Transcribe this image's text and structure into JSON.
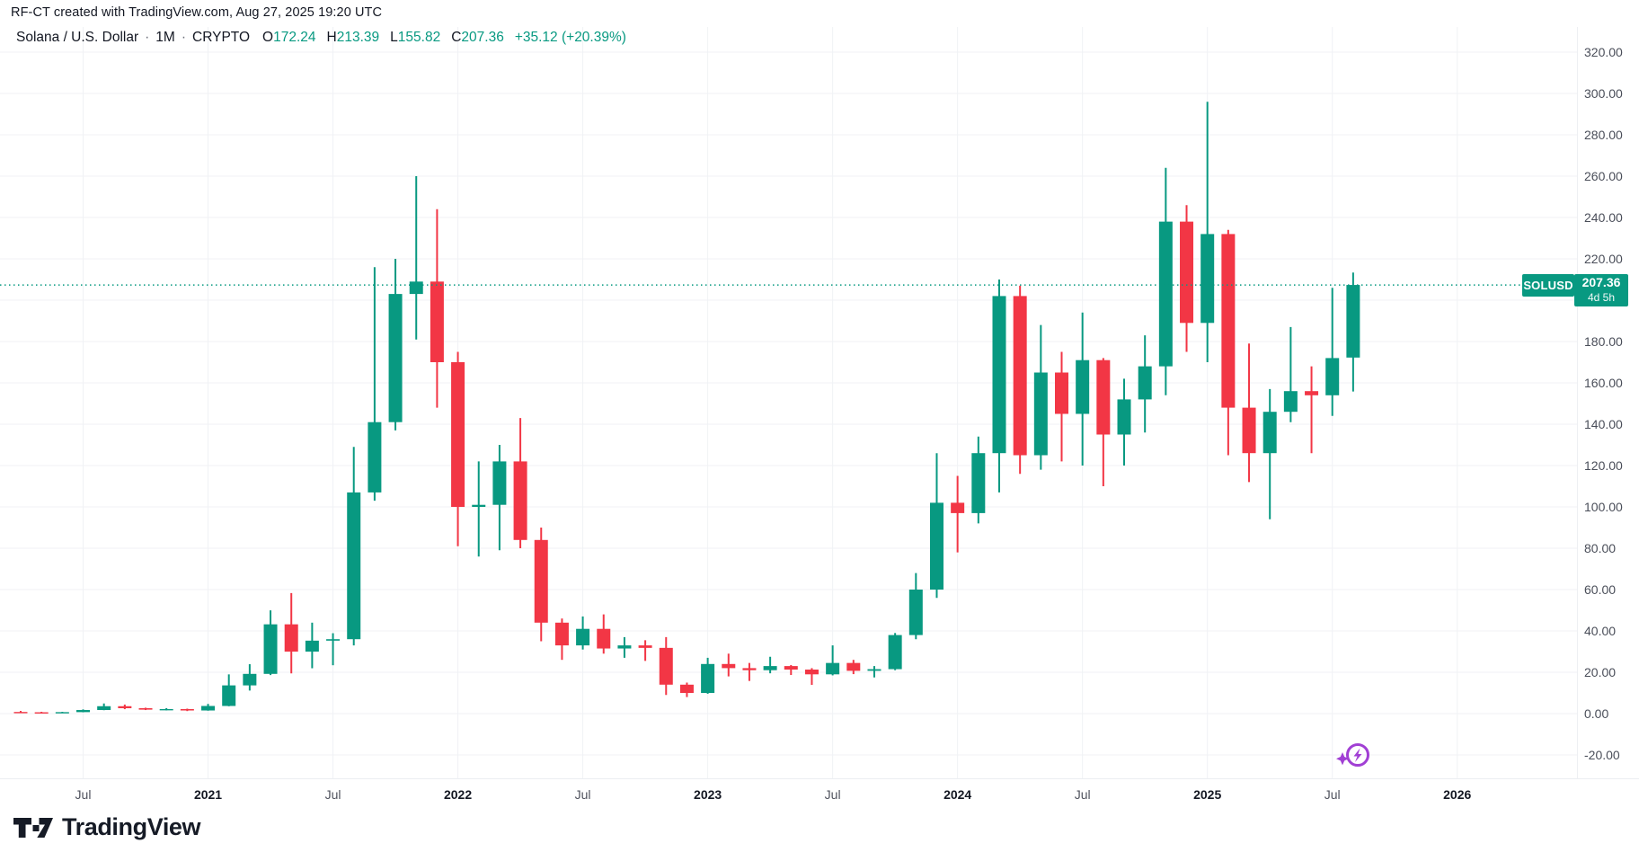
{
  "attribution": {
    "text": "RF-CT created with TradingView.com, Aug 27, 2025 19:20 UTC"
  },
  "legend": {
    "title": "Solana / U.S. Dollar",
    "dot": "·",
    "interval": "1M",
    "exchange": "CRYPTO",
    "ohlc": [
      {
        "label": "O",
        "value": "172.24"
      },
      {
        "label": "H",
        "value": "213.39"
      },
      {
        "label": "L",
        "value": "155.82"
      },
      {
        "label": "C",
        "value": "207.36"
      }
    ],
    "change": "+35.12 (+20.39%)"
  },
  "price_label": {
    "symbol": "SOLUSD",
    "price": "207.36",
    "countdown": "4d 5h"
  },
  "logo": {
    "text": "TradingView"
  },
  "icons": {
    "spark": "lightning-bolt-in-circle-with-sparkle"
  },
  "colors": {
    "up": "#089981",
    "down": "#F23645",
    "accent": "#089981",
    "grid": "#f0f2f5",
    "axis_text": "#4a4e59",
    "text": "#131722",
    "badge_text": "#ffffff",
    "spark_purple": "#a13fd4",
    "logo_ink": "#161b26"
  },
  "y_axis": {
    "values": [
      320,
      300,
      280,
      260,
      240,
      220,
      200,
      180,
      160,
      140,
      120,
      100,
      80,
      60,
      40,
      20,
      0,
      -20
    ],
    "labels": [
      "320.00",
      "300.00",
      "280.00",
      "260.00",
      "240.00",
      "220.00",
      "200.00",
      "180.00",
      "160.00",
      "140.00",
      "120.00",
      "100.00",
      "80.00",
      "60.00",
      "40.00",
      "20.00",
      "0.00",
      "-20.00"
    ]
  },
  "x_axis": {
    "ticks": [
      {
        "label": "Jul",
        "month_index": 3,
        "year": false
      },
      {
        "label": "2021",
        "month_index": 9,
        "year": true
      },
      {
        "label": "Jul",
        "month_index": 15,
        "year": false
      },
      {
        "label": "2022",
        "month_index": 21,
        "year": true
      },
      {
        "label": "Jul",
        "month_index": 27,
        "year": false
      },
      {
        "label": "2023",
        "month_index": 33,
        "year": true
      },
      {
        "label": "Jul",
        "month_index": 39,
        "year": false
      },
      {
        "label": "2024",
        "month_index": 45,
        "year": true
      },
      {
        "label": "Jul",
        "month_index": 51,
        "year": false
      },
      {
        "label": "2025",
        "month_index": 57,
        "year": true
      },
      {
        "label": "Jul",
        "month_index": 63,
        "year": false
      },
      {
        "label": "2026",
        "month_index": 69,
        "year": true
      }
    ]
  },
  "chart_data": {
    "type": "candlestick",
    "title": "Solana / U.S. Dollar",
    "symbol": "SOLUSD",
    "interval": "1M",
    "exchange": "CRYPTO",
    "last_price": 207.36,
    "current_bar": {
      "open": 172.24,
      "high": 213.39,
      "low": 155.82,
      "close": 207.36,
      "change": 35.12,
      "change_pct": 20.39
    },
    "ylim": [
      -20,
      320
    ],
    "y_step": 20,
    "grid": true,
    "legend_position": "top-left",
    "candles": [
      {
        "t": "2020-04",
        "o": 0.79,
        "h": 1.31,
        "l": 0.5,
        "c": 0.64
      },
      {
        "t": "2020-05",
        "o": 0.64,
        "h": 0.88,
        "l": 0.46,
        "c": 0.61
      },
      {
        "t": "2020-06",
        "o": 0.61,
        "h": 0.86,
        "l": 0.56,
        "c": 0.71
      },
      {
        "t": "2020-07",
        "o": 0.71,
        "h": 2.04,
        "l": 0.64,
        "c": 1.73
      },
      {
        "t": "2020-08",
        "o": 1.73,
        "h": 4.9,
        "l": 1.65,
        "c": 3.58
      },
      {
        "t": "2020-09",
        "o": 3.58,
        "h": 4.37,
        "l": 2.15,
        "c": 2.61
      },
      {
        "t": "2020-10",
        "o": 2.61,
        "h": 2.85,
        "l": 1.72,
        "c": 1.91
      },
      {
        "t": "2020-11",
        "o": 1.91,
        "h": 2.64,
        "l": 1.58,
        "c": 2.19
      },
      {
        "t": "2020-12",
        "o": 2.19,
        "h": 2.4,
        "l": 1.22,
        "c": 1.51
      },
      {
        "t": "2021-01",
        "o": 1.51,
        "h": 4.69,
        "l": 1.4,
        "c": 3.7
      },
      {
        "t": "2021-02",
        "o": 3.7,
        "h": 18.98,
        "l": 3.55,
        "c": 13.65
      },
      {
        "t": "2021-03",
        "o": 13.65,
        "h": 23.9,
        "l": 11.15,
        "c": 19.22
      },
      {
        "t": "2021-04",
        "o": 19.22,
        "h": 49.93,
        "l": 18.65,
        "c": 43.19
      },
      {
        "t": "2021-05",
        "o": 43.19,
        "h": 58.3,
        "l": 19.45,
        "c": 30.0
      },
      {
        "t": "2021-06",
        "o": 30.0,
        "h": 44.0,
        "l": 21.94,
        "c": 35.29
      },
      {
        "t": "2021-07",
        "o": 35.29,
        "h": 38.9,
        "l": 23.4,
        "c": 36.0
      },
      {
        "t": "2021-08",
        "o": 36.0,
        "h": 129.0,
        "l": 33.0,
        "c": 107.0
      },
      {
        "t": "2021-09",
        "o": 107.0,
        "h": 216.0,
        "l": 103.0,
        "c": 141.0
      },
      {
        "t": "2021-10",
        "o": 141.0,
        "h": 220.0,
        "l": 137.0,
        "c": 203.0
      },
      {
        "t": "2021-11",
        "o": 203.0,
        "h": 260.0,
        "l": 181.0,
        "c": 209.0
      },
      {
        "t": "2021-12",
        "o": 209.0,
        "h": 244.0,
        "l": 148.0,
        "c": 170.0
      },
      {
        "t": "2022-01",
        "o": 170.0,
        "h": 175.0,
        "l": 81.0,
        "c": 100.0
      },
      {
        "t": "2022-02",
        "o": 100.0,
        "h": 122.0,
        "l": 76.0,
        "c": 101.0
      },
      {
        "t": "2022-03",
        "o": 101.0,
        "h": 130.0,
        "l": 79.0,
        "c": 122.0
      },
      {
        "t": "2022-04",
        "o": 122.0,
        "h": 143.0,
        "l": 80.0,
        "c": 84.0
      },
      {
        "t": "2022-05",
        "o": 84.0,
        "h": 90.0,
        "l": 35.0,
        "c": 44.0
      },
      {
        "t": "2022-06",
        "o": 44.0,
        "h": 46.0,
        "l": 26.0,
        "c": 33.0
      },
      {
        "t": "2022-07",
        "o": 33.0,
        "h": 47.0,
        "l": 31.0,
        "c": 41.0
      },
      {
        "t": "2022-08",
        "o": 41.0,
        "h": 48.0,
        "l": 29.0,
        "c": 31.5
      },
      {
        "t": "2022-09",
        "o": 31.5,
        "h": 37.0,
        "l": 27.0,
        "c": 33.0
      },
      {
        "t": "2022-10",
        "o": 33.0,
        "h": 35.5,
        "l": 25.5,
        "c": 31.8
      },
      {
        "t": "2022-11",
        "o": 31.8,
        "h": 37.0,
        "l": 9.0,
        "c": 14.0
      },
      {
        "t": "2022-12",
        "o": 14.0,
        "h": 15.0,
        "l": 8.0,
        "c": 10.0
      },
      {
        "t": "2023-01",
        "o": 10.0,
        "h": 27.0,
        "l": 9.6,
        "c": 24.0
      },
      {
        "t": "2023-02",
        "o": 24.0,
        "h": 29.0,
        "l": 18.0,
        "c": 22.0
      },
      {
        "t": "2023-03",
        "o": 22.0,
        "h": 24.5,
        "l": 15.8,
        "c": 21.0
      },
      {
        "t": "2023-04",
        "o": 21.0,
        "h": 27.5,
        "l": 19.5,
        "c": 23.0
      },
      {
        "t": "2023-05",
        "o": 23.0,
        "h": 23.5,
        "l": 18.7,
        "c": 21.3
      },
      {
        "t": "2023-06",
        "o": 21.3,
        "h": 22.0,
        "l": 13.9,
        "c": 19.0
      },
      {
        "t": "2023-07",
        "o": 19.0,
        "h": 33.0,
        "l": 18.5,
        "c": 24.5
      },
      {
        "t": "2023-08",
        "o": 24.5,
        "h": 26.0,
        "l": 19.1,
        "c": 20.7
      },
      {
        "t": "2023-09",
        "o": 20.7,
        "h": 23.0,
        "l": 17.5,
        "c": 21.5
      },
      {
        "t": "2023-10",
        "o": 21.5,
        "h": 39.0,
        "l": 21.0,
        "c": 38.0
      },
      {
        "t": "2023-11",
        "o": 38.0,
        "h": 68.0,
        "l": 36.0,
        "c": 60.0
      },
      {
        "t": "2023-12",
        "o": 60.0,
        "h": 126.0,
        "l": 56.0,
        "c": 102.0
      },
      {
        "t": "2024-01",
        "o": 102.0,
        "h": 115.0,
        "l": 78.0,
        "c": 97.0
      },
      {
        "t": "2024-02",
        "o": 97.0,
        "h": 134.0,
        "l": 92.0,
        "c": 126.0
      },
      {
        "t": "2024-03",
        "o": 126.0,
        "h": 210.0,
        "l": 107.0,
        "c": 202.0
      },
      {
        "t": "2024-04",
        "o": 202.0,
        "h": 207.0,
        "l": 116.0,
        "c": 125.0
      },
      {
        "t": "2024-05",
        "o": 125.0,
        "h": 188.0,
        "l": 118.0,
        "c": 165.0
      },
      {
        "t": "2024-06",
        "o": 165.0,
        "h": 175.0,
        "l": 122.0,
        "c": 145.0
      },
      {
        "t": "2024-07",
        "o": 145.0,
        "h": 194.0,
        "l": 120.0,
        "c": 171.0
      },
      {
        "t": "2024-08",
        "o": 171.0,
        "h": 172.0,
        "l": 110.0,
        "c": 135.0
      },
      {
        "t": "2024-09",
        "o": 135.0,
        "h": 162.0,
        "l": 120.0,
        "c": 152.0
      },
      {
        "t": "2024-10",
        "o": 152.0,
        "h": 183.0,
        "l": 136.0,
        "c": 168.0
      },
      {
        "t": "2024-11",
        "o": 168.0,
        "h": 264.0,
        "l": 154.0,
        "c": 238.0
      },
      {
        "t": "2024-12",
        "o": 238.0,
        "h": 246.0,
        "l": 175.0,
        "c": 189.0
      },
      {
        "t": "2025-01",
        "o": 189.0,
        "h": 296.0,
        "l": 170.0,
        "c": 232.0
      },
      {
        "t": "2025-02",
        "o": 232.0,
        "h": 234.0,
        "l": 125.0,
        "c": 148.0
      },
      {
        "t": "2025-03",
        "o": 148.0,
        "h": 179.0,
        "l": 112.0,
        "c": 126.0
      },
      {
        "t": "2025-04",
        "o": 126.0,
        "h": 157.0,
        "l": 94.0,
        "c": 146.0
      },
      {
        "t": "2025-05",
        "o": 146.0,
        "h": 187.0,
        "l": 141.0,
        "c": 156.0
      },
      {
        "t": "2025-06",
        "o": 156.0,
        "h": 168.0,
        "l": 126.0,
        "c": 154.0
      },
      {
        "t": "2025-07",
        "o": 154.0,
        "h": 206.0,
        "l": 144.0,
        "c": 172.0
      },
      {
        "t": "2025-08",
        "o": 172.24,
        "h": 213.39,
        "l": 155.82,
        "c": 207.36
      }
    ]
  }
}
